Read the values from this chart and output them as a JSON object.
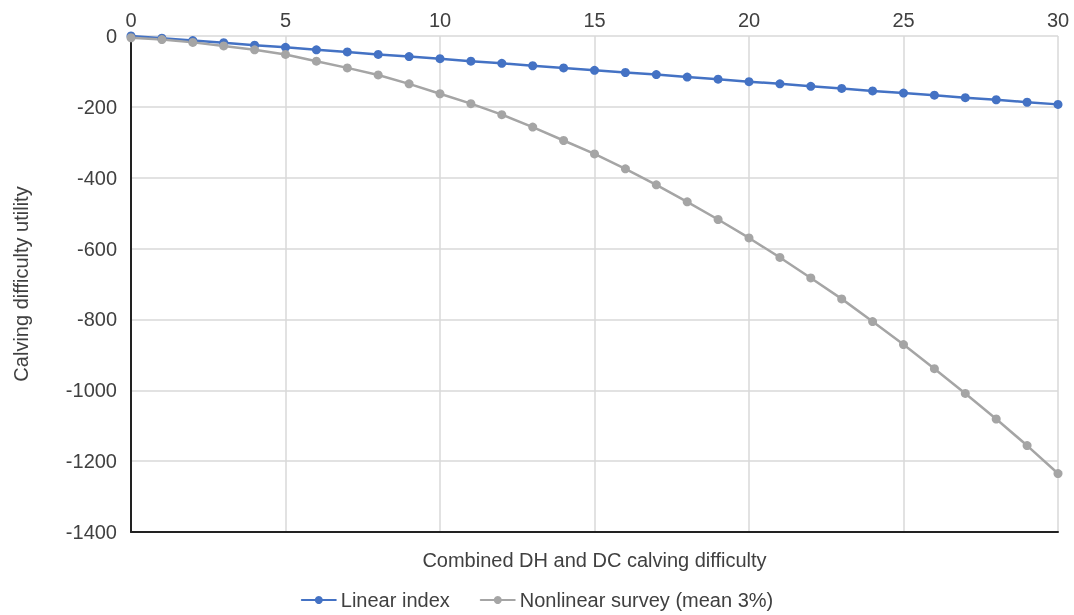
{
  "chart_data": {
    "type": "line",
    "xlabel": "Combined DH and DC calving difficulty",
    "ylabel": "Calving difficulty utility",
    "x": [
      0,
      1,
      2,
      3,
      4,
      5,
      6,
      7,
      8,
      9,
      10,
      11,
      12,
      13,
      14,
      15,
      16,
      17,
      18,
      19,
      20,
      21,
      22,
      23,
      24,
      25,
      26,
      27,
      28,
      29,
      30
    ],
    "series": [
      {
        "name": "Linear index",
        "color": "#4472c4",
        "values": [
          0,
          -6,
          -13,
          -19,
          -26,
          -32,
          -39,
          -45,
          -52,
          -58,
          -64,
          -71,
          -77,
          -84,
          -90,
          -97,
          -103,
          -109,
          -116,
          -122,
          -129,
          -135,
          -142,
          -148,
          -155,
          -161,
          -167,
          -174,
          -180,
          -187,
          -193
        ]
      },
      {
        "name": "Nonlinear survey (mean 3%)",
        "color": "#a5a5a5",
        "values": [
          -5,
          -10,
          -18,
          -28,
          -39,
          -52,
          -71,
          -90,
          -110,
          -135,
          -163,
          -191,
          -222,
          -257,
          -295,
          -333,
          -375,
          -420,
          -468,
          -518,
          -570,
          -625,
          -683,
          -742,
          -806,
          -871,
          -939,
          -1009,
          -1081,
          -1156,
          -1235
        ]
      }
    ],
    "xlim": [
      0,
      30
    ],
    "xticks": [
      0,
      5,
      10,
      15,
      20,
      25,
      30
    ],
    "ylim": [
      -1400,
      0
    ],
    "yticks": [
      -1400,
      -1200,
      -1000,
      -800,
      -600,
      -400,
      -200,
      0
    ],
    "grid": true,
    "legend": "bottom",
    "marker": "circle",
    "line_style": "solid"
  }
}
